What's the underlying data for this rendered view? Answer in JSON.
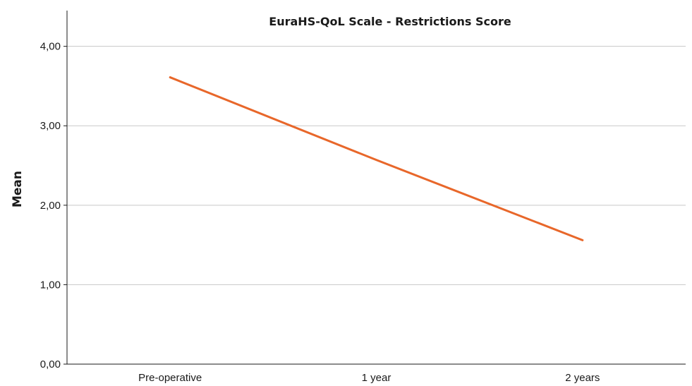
{
  "chart_data": {
    "type": "line",
    "title": "EuraHS-QoL Scale - Restrictions Score",
    "xlabel": "",
    "ylabel": "Mean",
    "categories": [
      "Pre-operative",
      "1 year",
      "2 years"
    ],
    "series": [
      {
        "values": [
          3.61,
          2.57,
          1.56
        ],
        "color": "#e8672a"
      }
    ],
    "ylim": [
      0,
      4.45
    ],
    "yticks": [
      0,
      1,
      2,
      3,
      4
    ],
    "ytick_labels": [
      "0,00",
      "1,00",
      "2,00",
      "3,00",
      "4,00"
    ],
    "grid": true,
    "legend": "none"
  }
}
